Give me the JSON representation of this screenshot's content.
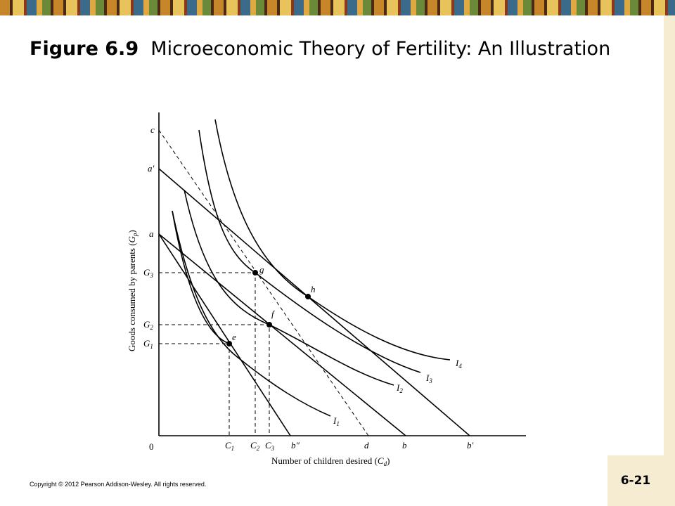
{
  "title": {
    "figure": "Figure 6.9",
    "text": "Microeconomic Theory of Fertility: An Illustration"
  },
  "diagram": {
    "y_axis_label": {
      "text": "Goods consumed by parents (",
      "base": "G",
      "sub": "p",
      "end": ")"
    },
    "x_axis_label": {
      "text": "Number of children desired (",
      "base": "C",
      "sub": "d",
      "end": ")"
    },
    "origin": "0",
    "labels": [
      {
        "base": "c"
      },
      {
        "base": "a′"
      },
      {
        "base": "a"
      },
      {
        "base": "G",
        "sub": "3"
      },
      {
        "base": "G",
        "sub": "2"
      },
      {
        "base": "G",
        "sub": "1"
      },
      {
        "base": "C",
        "sub": "1"
      },
      {
        "base": "C",
        "sub": "2"
      },
      {
        "base": "C",
        "sub": "3"
      },
      {
        "base": "b″"
      },
      {
        "base": "d"
      },
      {
        "base": "b"
      },
      {
        "base": "b′"
      },
      {
        "base": "e"
      },
      {
        "base": "f"
      },
      {
        "base": "g"
      },
      {
        "base": "h"
      },
      {
        "base": "I",
        "sub": "1"
      },
      {
        "base": "I",
        "sub": "2"
      },
      {
        "base": "I",
        "sub": "3"
      },
      {
        "base": "I",
        "sub": "4"
      }
    ]
  },
  "footer": {
    "copyright": "Copyright © 2012 Pearson Addison-Wesley. All rights reserved.",
    "page": "6-21"
  }
}
